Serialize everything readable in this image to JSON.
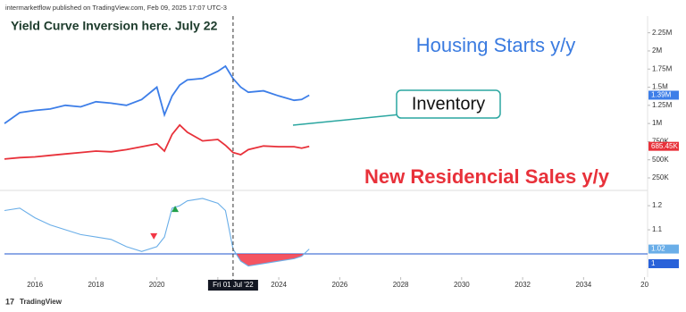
{
  "header": "intermarketflow published on TradingView.com, Feb 09, 2025 17:07 UTC-3",
  "footer": "TradingView",
  "chart_data": [
    {
      "type": "line",
      "title": "Yield Curve Inversion here. July 22",
      "annotation": "Inventory",
      "x": [
        2015.0,
        2015.5,
        2016,
        2016.5,
        2017,
        2017.5,
        2018,
        2018.5,
        2019,
        2019.5,
        2020,
        2020.25,
        2020.5,
        2020.75,
        2021,
        2021.5,
        2022,
        2022.25,
        2022.5,
        2022.75,
        2023,
        2023.5,
        2024,
        2024.5,
        2024.75,
        2025
      ],
      "xlim": [
        2015,
        2036.1
      ],
      "ylim": [
        90000,
        2480000
      ],
      "yticks": [
        {
          "value": 250000,
          "label": "250K"
        },
        {
          "value": 500000,
          "label": "500K"
        },
        {
          "value": 750000,
          "label": "750K"
        },
        {
          "value": 1000000,
          "label": "1M"
        },
        {
          "value": 1250000,
          "label": "1.25M"
        },
        {
          "value": 1500000,
          "label": "1.5M"
        },
        {
          "value": 1750000,
          "label": "1.75M"
        },
        {
          "value": 2000000,
          "label": "2M"
        },
        {
          "value": 2250000,
          "label": "2.25M"
        }
      ],
      "series": [
        {
          "name": "Housing Starts y/y",
          "color": "#3d7ee8",
          "last_label": "1.39M",
          "values": [
            1000000,
            1150000,
            1180000,
            1200000,
            1250000,
            1230000,
            1300000,
            1280000,
            1250000,
            1330000,
            1500000,
            1120000,
            1380000,
            1530000,
            1600000,
            1620000,
            1720000,
            1790000,
            1620000,
            1500000,
            1430000,
            1450000,
            1380000,
            1320000,
            1330000,
            1390000
          ]
        },
        {
          "name": "New Residencial Sales y/y",
          "color": "#e8313a",
          "last_label": "685.45K",
          "values": [
            510000,
            530000,
            540000,
            560000,
            580000,
            600000,
            620000,
            610000,
            640000,
            680000,
            720000,
            620000,
            850000,
            980000,
            880000,
            760000,
            780000,
            700000,
            600000,
            570000,
            640000,
            690000,
            680000,
            680000,
            660000,
            685450
          ]
        }
      ]
    },
    {
      "type": "line",
      "x": [
        2015.0,
        2015.5,
        2016,
        2016.5,
        2017,
        2017.5,
        2018,
        2018.5,
        2019,
        2019.5,
        2020,
        2020.25,
        2020.5,
        2020.75,
        2021,
        2021.5,
        2022,
        2022.25,
        2022.5,
        2022.75,
        2023,
        2023.5,
        2024,
        2024.5,
        2024.75,
        2025
      ],
      "xlim": [
        2015,
        2036.1
      ],
      "ylim": [
        0.922,
        1.256
      ],
      "yticks": [
        1.1,
        1.2
      ],
      "xticks": [
        2016,
        2018,
        2020,
        2022,
        2024,
        2026,
        2028,
        2030,
        2032,
        2034,
        {
          "value": 2036,
          "label": "20"
        }
      ],
      "baseline": {
        "value": 1,
        "label": "1",
        "color": "#4a78d8"
      },
      "crosshair": {
        "x": 2022.5,
        "label": "Fri 01 Jul '22"
      },
      "series": [
        {
          "color": "#6aaee8",
          "last_label": "1.02",
          "values": [
            1.18,
            1.19,
            1.15,
            1.12,
            1.1,
            1.08,
            1.07,
            1.06,
            1.03,
            1.01,
            1.03,
            1.07,
            1.19,
            1.2,
            1.22,
            1.23,
            1.21,
            1.18,
            1.02,
            0.97,
            0.95,
            0.96,
            0.97,
            0.98,
            0.99,
            1.02
          ]
        }
      ],
      "markers": [
        {
          "x": 2019.9,
          "y": 1.06,
          "color": "#f23645",
          "dir": "down"
        },
        {
          "x": 2020.6,
          "y": 1.2,
          "color": "#22a04a",
          "dir": "up"
        }
      ]
    }
  ]
}
